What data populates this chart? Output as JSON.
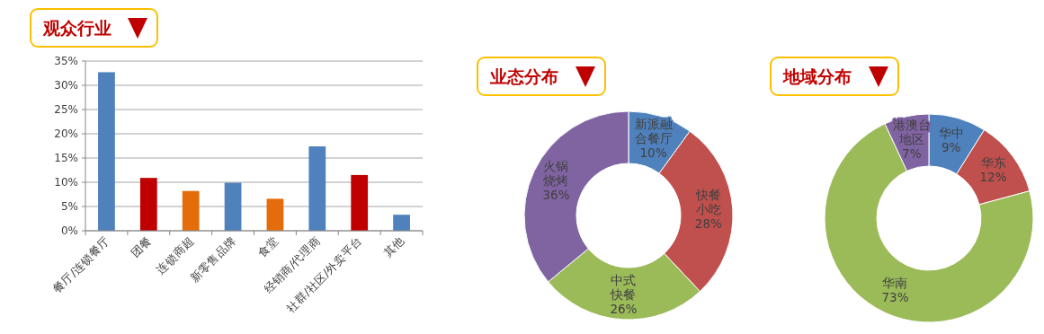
{
  "chart_data": [
    {
      "type": "bar",
      "title": "观众行业",
      "categories": [
        "餐厅/连锁餐厅",
        "团餐",
        "连锁商超",
        "新零售品牌",
        "食堂",
        "经销商/代理商",
        "社群/社区/外卖平台",
        "其他"
      ],
      "values": [
        32.7,
        10.9,
        8.2,
        9.9,
        6.6,
        17.4,
        11.5,
        3.3
      ],
      "colors": [
        "#4f81bd",
        "#c00000",
        "#e46c0a",
        "#4f81bd",
        "#e46c0a",
        "#4f81bd",
        "#c00000",
        "#4f81bd"
      ],
      "ylim": [
        0,
        35
      ],
      "yticks": [
        {
          "value": 0,
          "label": "0%"
        },
        {
          "value": 5,
          "label": "5%"
        },
        {
          "value": 10,
          "label": "10%"
        },
        {
          "value": 15,
          "label": "15%"
        },
        {
          "value": 20,
          "label": "20%"
        },
        {
          "value": 25,
          "label": "25%"
        },
        {
          "value": 30,
          "label": "30%"
        },
        {
          "value": 35,
          "label": "35%"
        }
      ],
      "grid": "y"
    },
    {
      "type": "donut",
      "title": "业态分布",
      "categories": [
        "新派融合餐厅",
        "快餐小吃",
        "中式快餐",
        "火锅烧烤"
      ],
      "values": [
        10,
        28,
        26,
        36
      ],
      "colors": [
        "#4f81bd",
        "#c0504d",
        "#9bbb59",
        "#8064a2"
      ],
      "value_labels": [
        "10%",
        "28%",
        "26%",
        "36%"
      ]
    },
    {
      "type": "donut",
      "title": "地域分布",
      "categories": [
        "华中",
        "华东",
        "华南",
        "港澳台地区"
      ],
      "values": [
        9,
        12,
        73,
        7
      ],
      "colors": [
        "#4f81bd",
        "#c0504d",
        "#9bbb59",
        "#8064a2"
      ],
      "value_labels": [
        "9%",
        "12%",
        "73%",
        "7%"
      ]
    }
  ]
}
